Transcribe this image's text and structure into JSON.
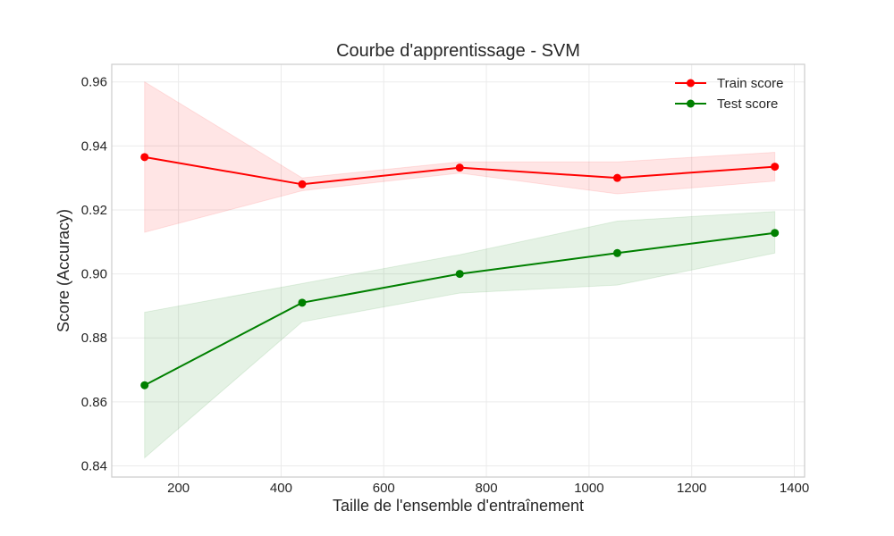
{
  "chart_data": {
    "type": "line",
    "title": "Courbe d'apprentissage - SVM",
    "xlabel": "Taille de l'ensemble d'entraînement",
    "ylabel": "Score (Accuracy)",
    "xlim": [
      70,
      1420
    ],
    "ylim": [
      0.8365,
      0.9655
    ],
    "x_ticks": [
      200,
      400,
      600,
      800,
      1000,
      1200,
      1400
    ],
    "y_ticks": [
      0.84,
      0.86,
      0.88,
      0.9,
      0.92,
      0.94,
      0.96
    ],
    "y_tick_labels": [
      "0.84",
      "0.86",
      "0.88",
      "0.90",
      "0.92",
      "0.94",
      "0.96"
    ],
    "x": [
      134,
      441,
      748,
      1055,
      1362
    ],
    "grid": true,
    "legend_position": "top-right",
    "series": [
      {
        "name": "Train score",
        "color": "#ff0000",
        "values": [
          0.9365,
          0.928,
          0.9332,
          0.93,
          0.9335
        ],
        "band_upper": [
          0.96,
          0.93,
          0.935,
          0.935,
          0.938
        ],
        "band_lower": [
          0.913,
          0.926,
          0.9315,
          0.925,
          0.929
        ]
      },
      {
        "name": "Test score",
        "color": "#008000",
        "values": [
          0.8652,
          0.891,
          0.9,
          0.9065,
          0.9128
        ],
        "band_upper": [
          0.888,
          0.897,
          0.906,
          0.9165,
          0.9195
        ],
        "band_lower": [
          0.8425,
          0.885,
          0.894,
          0.8965,
          0.9065
        ]
      }
    ]
  }
}
